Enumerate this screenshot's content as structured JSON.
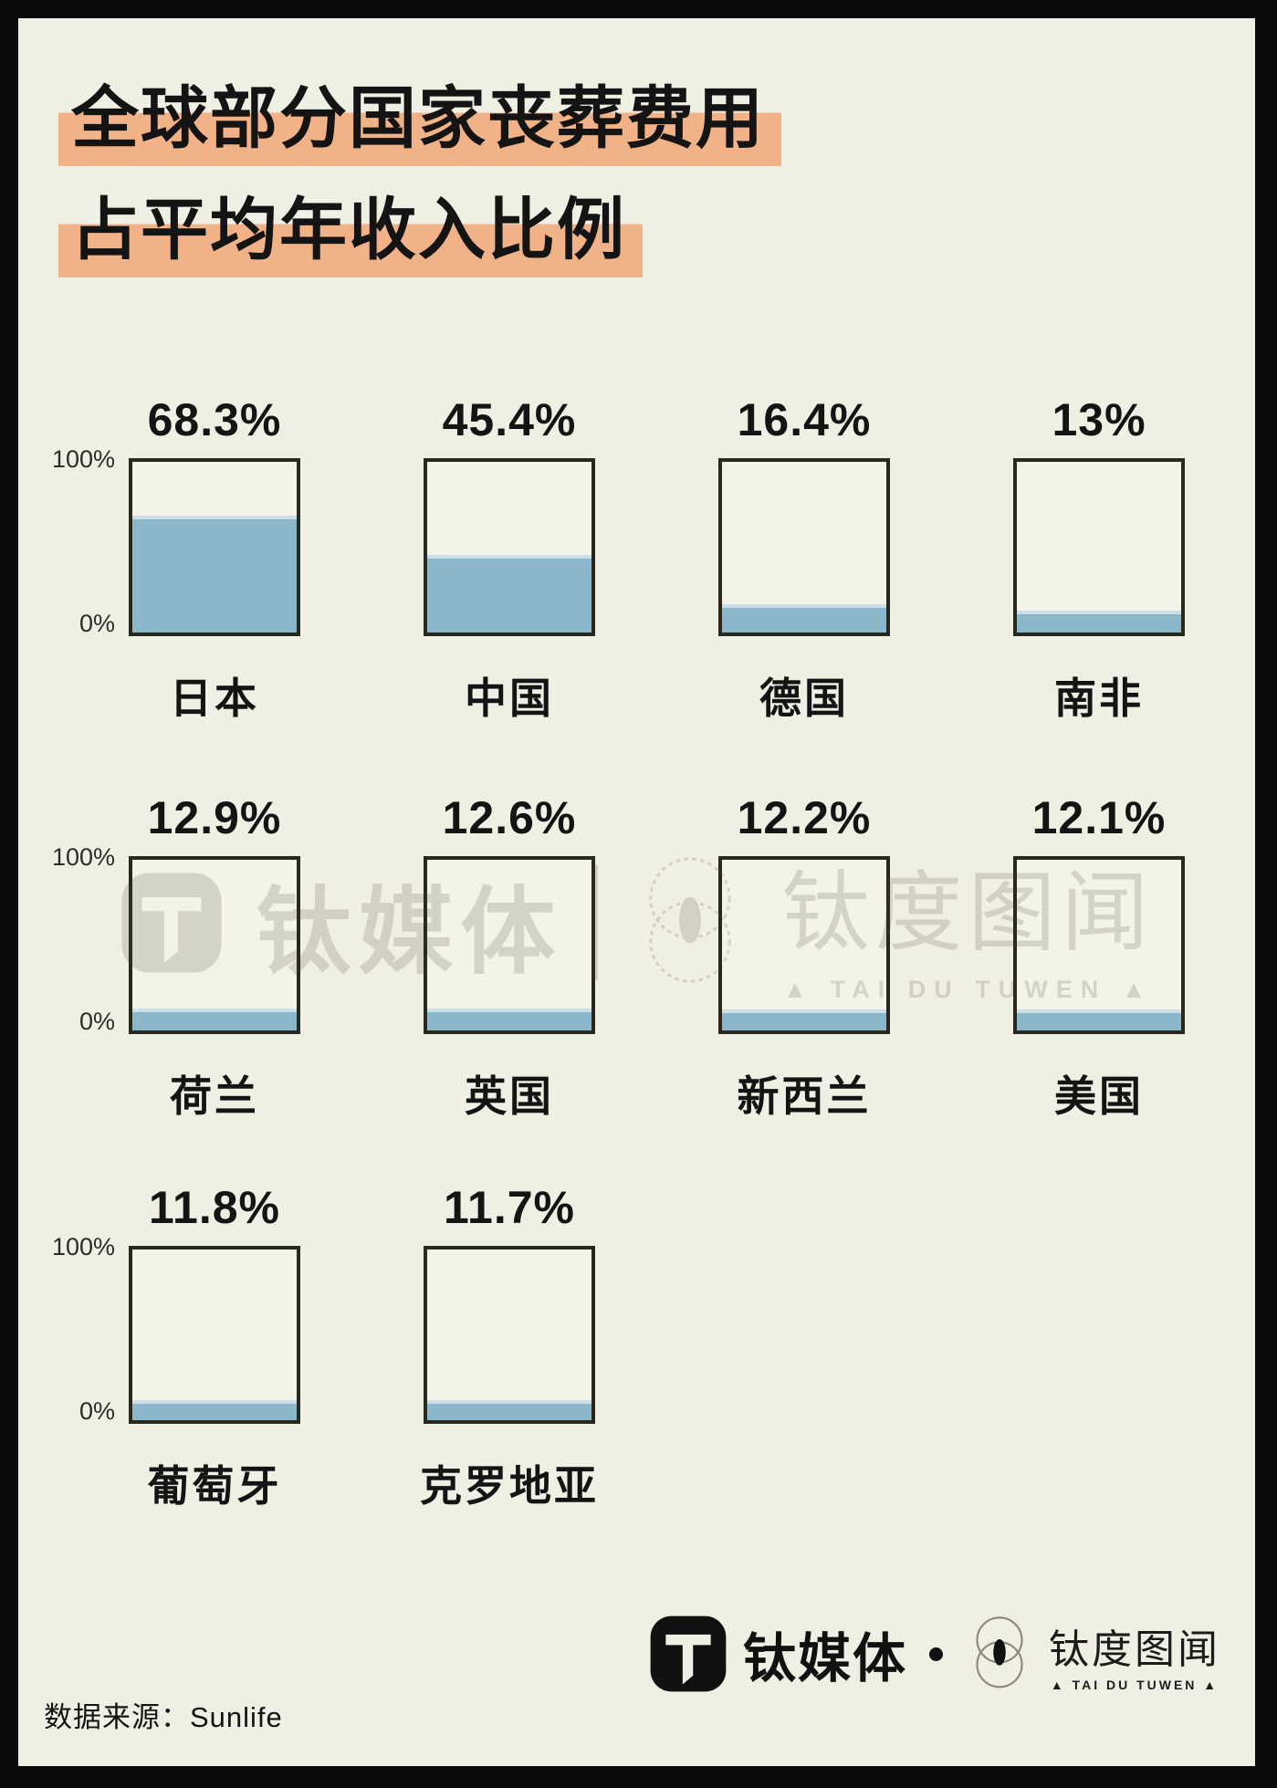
{
  "page": {
    "frame_color": "#0a0a0a",
    "background_color": "#f0efe3"
  },
  "title": {
    "line1": "全球部分国家丧葬费用",
    "line2": "占平均年收入比例",
    "highlight_color": "#f2b287"
  },
  "axis": {
    "top": "100%",
    "bottom": "0%"
  },
  "chart_data": {
    "type": "bar",
    "title": "全球部分国家丧葬费用占平均年收入比例",
    "categories": [
      "日本",
      "中国",
      "德国",
      "南非",
      "荷兰",
      "英国",
      "新西兰",
      "美国",
      "葡萄牙",
      "克罗地亚"
    ],
    "values": [
      68.3,
      45.4,
      16.4,
      13,
      12.9,
      12.6,
      12.2,
      12.1,
      11.8,
      11.7
    ],
    "value_labels": [
      "68.3%",
      "45.4%",
      "16.4%",
      "13%",
      "12.9%",
      "12.6%",
      "12.2%",
      "12.1%",
      "11.8%",
      "11.7%"
    ],
    "unit": "%",
    "ylim": [
      0,
      100
    ],
    "axis_tick_labels": [
      "100%",
      "0%"
    ],
    "bar_color": "#8bb7ca",
    "rows": [
      4,
      4,
      2
    ]
  },
  "watermark": {
    "brand1": "钛媒体",
    "brand2": "钛度图闻",
    "tagline": "▲ TAI DU TUWEN ▲"
  },
  "footer": {
    "source": "数据来源：Sunlife",
    "brand1": "钛媒体",
    "brand2": "钛度图闻",
    "brand2_tagline": "▲ TAI DU TUWEN ▲"
  }
}
